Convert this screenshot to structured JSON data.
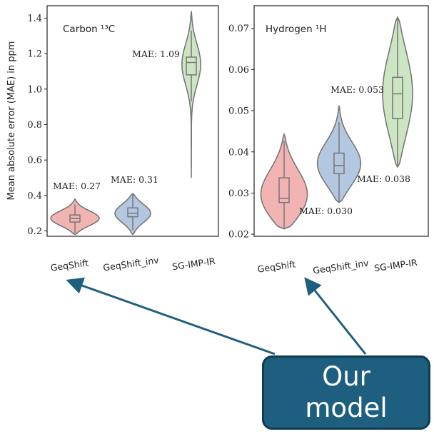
{
  "chart_data": [
    {
      "type": "violin",
      "title": "Carbon ¹³C",
      "ylabel": "Mean absolute error (MAE) in ppm",
      "ylim": [
        0.17,
        1.47
      ],
      "yticks": [
        "0.2",
        "0.4",
        "0.6",
        "0.8",
        "1.0",
        "1.2",
        "1.4"
      ],
      "categories": [
        "GeqShift",
        "GeqShift_inv",
        "SG-IMP-IR"
      ],
      "colors": [
        "#f2b3b3",
        "#b3c8e0",
        "#cce6c3"
      ],
      "violins": [
        {
          "category": "GeqShift",
          "min": 0.18,
          "q1": 0.25,
          "median": 0.27,
          "q3": 0.29,
          "max": 0.38,
          "mae_label": "MAE: 0.27"
        },
        {
          "category": "GeqShift_inv",
          "min": 0.18,
          "q1": 0.28,
          "median": 0.3,
          "q3": 0.33,
          "max": 0.41,
          "mae_label": "MAE: 0.31"
        },
        {
          "category": "SG-IMP-IR",
          "min": 0.5,
          "q1": 1.08,
          "median": 1.15,
          "q3": 1.18,
          "max": 1.44,
          "mae_label": "MAE: 1.09"
        }
      ]
    },
    {
      "type": "violin",
      "title": "Hydrogen ¹H",
      "ylim": [
        0.0195,
        0.0755
      ],
      "yticks": [
        "0.02",
        "0.03",
        "0.04",
        "0.05",
        "0.06",
        "0.07"
      ],
      "categories": [
        "GeqShift",
        "GeqShift_inv",
        "SG-IMP-IR"
      ],
      "colors": [
        "#f2b3b3",
        "#b3c8e0",
        "#cce6c3"
      ],
      "violins": [
        {
          "category": "GeqShift",
          "min": 0.0213,
          "q1": 0.0277,
          "median": 0.0287,
          "q3": 0.0337,
          "max": 0.0443,
          "mae_label": "MAE: 0.030"
        },
        {
          "category": "GeqShift_inv",
          "min": 0.0277,
          "q1": 0.0347,
          "median": 0.0367,
          "q3": 0.0397,
          "max": 0.0513,
          "mae_label": "MAE: 0.038"
        },
        {
          "category": "SG-IMP-IR",
          "min": 0.0363,
          "q1": 0.0481,
          "median": 0.0541,
          "q3": 0.0581,
          "max": 0.0727,
          "mae_label": "MAE: 0.053"
        }
      ]
    }
  ],
  "callout": {
    "text": "Our\nmodel",
    "color": "#1e5f80"
  }
}
